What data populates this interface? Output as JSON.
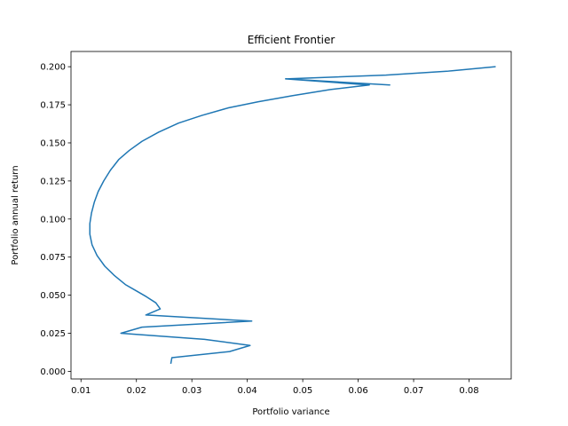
{
  "chart_data": {
    "type": "line",
    "title": "Efficient Frontier",
    "xlabel": "Portfolio variance",
    "ylabel": "Portfolio annual return",
    "xlim": [
      0.0082,
      0.0876
    ],
    "ylim": [
      -0.005,
      0.21
    ],
    "xticks": [
      0.01,
      0.02,
      0.03,
      0.04,
      0.05,
      0.06,
      0.07,
      0.08
    ],
    "xtick_labels": [
      "0.01",
      "0.02",
      "0.03",
      "0.04",
      "0.05",
      "0.06",
      "0.07",
      "0.08"
    ],
    "yticks": [
      0.0,
      0.025,
      0.05,
      0.075,
      0.1,
      0.125,
      0.15,
      0.175,
      0.2
    ],
    "ytick_labels": [
      "0.000",
      "0.025",
      "0.050",
      "0.075",
      "0.100",
      "0.125",
      "0.150",
      "0.175",
      "0.200"
    ],
    "grid": false,
    "legend": false,
    "line_color": "#1f77b4",
    "series": [
      {
        "x": [
          0.0262,
          0.0264,
          0.0368,
          0.0405,
          0.0323,
          0.0172,
          0.021,
          0.0408,
          0.0217,
          0.0243,
          0.0235,
          0.0218,
          0.0199,
          0.018,
          0.016,
          0.0143,
          0.0129,
          0.012,
          0.0116,
          0.0116,
          0.0119,
          0.0124,
          0.0131,
          0.0141,
          0.0153,
          0.0168,
          0.0187,
          0.021,
          0.024,
          0.0276,
          0.0318,
          0.0366,
          0.042,
          0.0482,
          0.055,
          0.062,
          0.0469,
          0.0657,
          0.047,
          0.065,
          0.076,
          0.0848
        ],
        "y": [
          0.005,
          0.009,
          0.013,
          0.017,
          0.021,
          0.025,
          0.029,
          0.033,
          0.037,
          0.041,
          0.045,
          0.049,
          0.053,
          0.057,
          0.063,
          0.069,
          0.076,
          0.083,
          0.09,
          0.097,
          0.104,
          0.111,
          0.118,
          0.125,
          0.132,
          0.139,
          0.145,
          0.151,
          0.157,
          0.163,
          0.168,
          0.173,
          0.177,
          0.181,
          0.185,
          0.188,
          0.192,
          0.188,
          0.192,
          0.1945,
          0.197,
          0.2
        ]
      }
    ]
  }
}
